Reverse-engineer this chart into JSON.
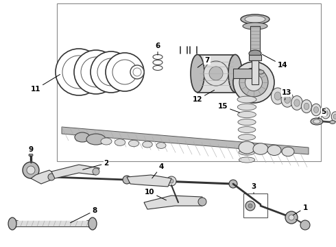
{
  "bg_color": "#ffffff",
  "figsize": [
    4.9,
    3.6
  ],
  "dpi": 100,
  "line_color": "#222222",
  "gray1": "#444444",
  "gray2": "#666666",
  "gray3": "#999999",
  "gray4": "#bbbbbb",
  "gray5": "#dddddd"
}
